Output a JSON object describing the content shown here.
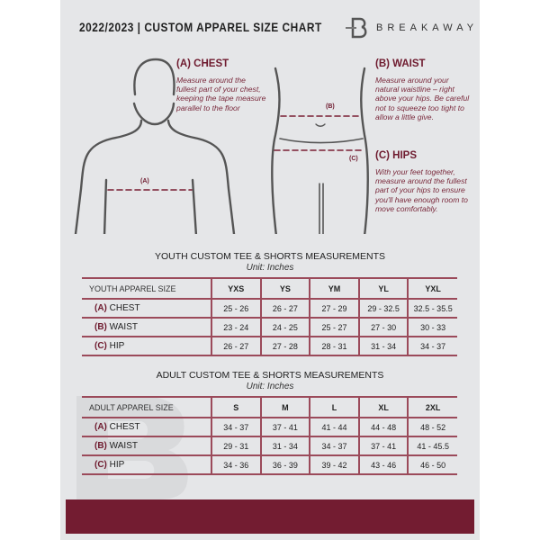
{
  "header": {
    "title": "2022/2023  |  CUSTOM APPAREL SIZE CHART",
    "brand": "BREAKAWAY",
    "logo_letter": "B"
  },
  "measures": {
    "chest": {
      "heading": "(A) CHEST",
      "marker": "(A)",
      "text": "Measure around the fullest part of your chest, keeping the tape measure parallel to the floor"
    },
    "waist": {
      "heading": "(B) WAIST",
      "marker": "(B)",
      "text": "Measure around your natural waistline – right above your hips. Be careful not to squeeze too tight to allow a little give."
    },
    "hips": {
      "heading": "(C) HIPS",
      "marker": "(C)",
      "text": "With your feet together, measure around the fullest part of your hips to ensure you'll have enough room to move comfortably."
    }
  },
  "youth": {
    "title": "YOUTH CUSTOM TEE & SHORTS MEASUREMENTS",
    "unit": "Unit: Inches",
    "header": [
      "YOUTH APPAREL SIZE",
      "YXS",
      "YS",
      "YM",
      "YL",
      "YXL"
    ],
    "rows": [
      {
        "code": "(A)",
        "label": "CHEST",
        "values": [
          "25 - 26",
          "26 - 27",
          "27 - 29",
          "29 - 32.5",
          "32.5 - 35.5"
        ]
      },
      {
        "code": "(B)",
        "label": "WAIST",
        "values": [
          "23 - 24",
          "24 - 25",
          "25 - 27",
          "27 - 30",
          "30 - 33"
        ]
      },
      {
        "code": "(C)",
        "label": "HIP",
        "values": [
          "26 - 27",
          "27 - 28",
          "28 - 31",
          "31 - 34",
          "34 - 37"
        ]
      }
    ]
  },
  "adult": {
    "title": "ADULT CUSTOM TEE & SHORTS MEASUREMENTS",
    "unit": "Unit: Inches",
    "header": [
      "ADULT APPAREL SIZE",
      "S",
      "M",
      "L",
      "XL",
      "2XL"
    ],
    "rows": [
      {
        "code": "(A)",
        "label": "CHEST",
        "values": [
          "34 - 37",
          "37 - 41",
          "41 - 44",
          "44 - 48",
          "48 - 52"
        ]
      },
      {
        "code": "(B)",
        "label": "WAIST",
        "values": [
          "29 - 31",
          "31 - 34",
          "34 - 37",
          "37 - 41",
          "41 - 45.5"
        ]
      },
      {
        "code": "(C)",
        "label": "HIP",
        "values": [
          "34 - 36",
          "36 - 39",
          "39 - 42",
          "43 - 46",
          "46 - 50"
        ]
      }
    ]
  },
  "colors": {
    "accent": "#731c31",
    "sheet": "#e5e6e8"
  }
}
